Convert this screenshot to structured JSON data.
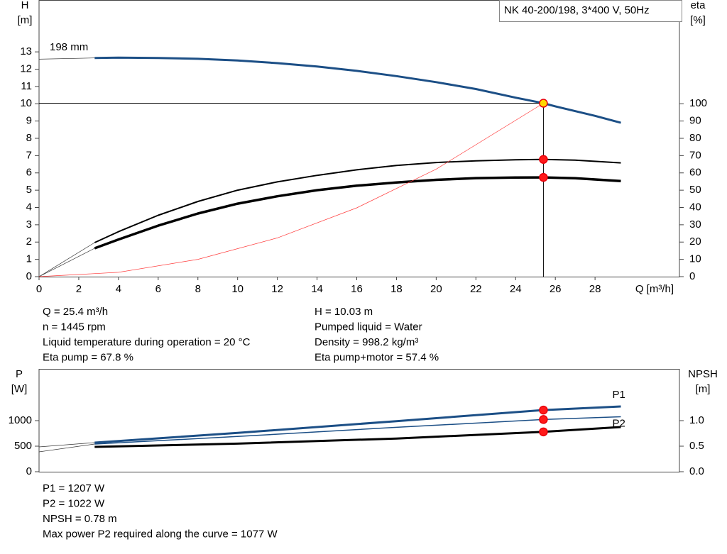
{
  "chart_data": [
    {
      "type": "line",
      "title": "NK 40-200/198, 3*400 V, 50Hz",
      "y_label": "H",
      "y_unit": "[m]",
      "y2_label": "eta",
      "y2_unit": "[%]",
      "x_label": "Q [m³/h]",
      "curve_label": "198 mm",
      "xlim": [
        0,
        32.25
      ],
      "xticks": [
        0,
        2,
        4,
        6,
        8,
        10,
        12,
        14,
        16,
        18,
        20,
        22,
        24,
        26,
        28
      ],
      "ylim": [
        0,
        16
      ],
      "yticks": [
        0,
        1,
        2,
        3,
        4,
        5,
        6,
        7,
        8,
        9,
        10,
        11,
        12,
        13
      ],
      "y2lim": [
        0,
        160
      ],
      "y2ticks": [
        0,
        10,
        20,
        30,
        40,
        50,
        60,
        70,
        80,
        90,
        100
      ],
      "series": [
        {
          "color": "#333333",
          "width": 0.7,
          "x": [
            0,
            2.8
          ],
          "values": [
            12.58,
            12.65
          ]
        },
        {
          "color": "#1c4f86",
          "width": 3,
          "x": [
            2.8,
            4,
            6,
            8,
            10,
            12,
            14,
            16,
            18,
            20,
            22,
            24,
            25.4,
            26,
            28,
            29.3
          ],
          "values": [
            12.65,
            12.67,
            12.65,
            12.6,
            12.5,
            12.35,
            12.15,
            11.9,
            11.6,
            11.25,
            10.85,
            10.35,
            10.03,
            9.85,
            9.3,
            8.9
          ]
        },
        {
          "color": "#333333",
          "width": 0.7,
          "axis": "y2",
          "x": [
            0,
            2.8
          ],
          "values": [
            0,
            19.7
          ]
        },
        {
          "color": "#000000",
          "width": 2,
          "axis": "y2",
          "x": [
            2.8,
            4,
            6,
            8,
            10,
            12,
            14,
            16,
            18,
            20,
            22,
            24,
            25.4,
            27,
            29.3
          ],
          "values": [
            19.7,
            26,
            35.5,
            43.5,
            50,
            54.8,
            58.6,
            61.8,
            64.3,
            66,
            67,
            67.6,
            67.8,
            67.4,
            65.8
          ]
        },
        {
          "color": "#333333",
          "width": 0.7,
          "axis": "y2",
          "x": [
            0,
            2.8
          ],
          "values": [
            0,
            16.4
          ]
        },
        {
          "color": "#000000",
          "width": 3.5,
          "axis": "y2",
          "x": [
            2.8,
            4,
            6,
            8,
            10,
            12,
            14,
            16,
            18,
            20,
            22,
            24,
            25.4,
            27,
            29.3
          ],
          "values": [
            16.4,
            21.5,
            29.5,
            36.5,
            42.2,
            46.5,
            50,
            52.6,
            54.5,
            56,
            57,
            57.3,
            57.4,
            56.9,
            55.3
          ]
        },
        {
          "color": "#ff3b3b",
          "width": 0.7,
          "x": [
            0,
            4,
            8,
            12,
            16,
            20,
            25.4
          ],
          "values": [
            0,
            0.25,
            1,
            2.24,
            3.98,
            6.22,
            10.03
          ]
        },
        {
          "color": "#e8000b",
          "marker": "#ffd700",
          "operating": true,
          "x": [
            25.4
          ],
          "values": [
            10.03
          ]
        },
        {
          "color": "#e8000b",
          "marker": "#ff1a1a",
          "axis": "y2",
          "x": [
            25.4,
            25.4
          ],
          "values": [
            67.8,
            57.4
          ]
        }
      ],
      "info_left": [
        "Q = 25.4 m³/h",
        "n = 1445 rpm",
        "Liquid temperature during operation = 20 °C",
        "Eta pump = 67.8 %"
      ],
      "info_right": [
        "H = 10.03 m",
        "Pumped liquid = Water",
        "Density = 998.2 kg/m³",
        "Eta pump+motor = 57.4 %"
      ]
    },
    {
      "type": "line",
      "y_label": "P",
      "y_unit": "[W]",
      "y2_label": "NPSH",
      "y2_unit": "[m]",
      "xlim": [
        0,
        32.25
      ],
      "ylim": [
        0,
        2014
      ],
      "yticks": [
        0,
        500,
        1000
      ],
      "y2lim": [
        0,
        2.014
      ],
      "y2ticks": [
        {
          "value": 0,
          "label": "0.0"
        },
        {
          "value": 0.5,
          "label": "0.5"
        },
        {
          "value": 1,
          "label": "1.0"
        }
      ],
      "series": [
        {
          "color": "#333333",
          "width": 0.7,
          "x": [
            0,
            2.8
          ],
          "values": [
            486,
            569
          ]
        },
        {
          "name": "P1",
          "color": "#1c4f86",
          "width": 3,
          "x": [
            2.8,
            10,
            18,
            25.4,
            29.3
          ],
          "values": [
            569,
            760,
            990,
            1207,
            1278
          ]
        },
        {
          "color": "#333333",
          "width": 0.7,
          "x": [
            0,
            2.8
          ],
          "values": [
            389,
            542
          ]
        },
        {
          "name": "P2",
          "color": "#1c4f86",
          "width": 1.5,
          "x": [
            2.8,
            10,
            18,
            25.4,
            29.3
          ],
          "values": [
            542,
            690,
            870,
            1022,
            1077
          ]
        },
        {
          "color": "#000000",
          "width": 3,
          "axis": "y2",
          "x": [
            2.8,
            10,
            18,
            25.4,
            29.3
          ],
          "values": [
            0.486,
            0.55,
            0.65,
            0.78,
            0.875
          ]
        },
        {
          "color": "#e8000b",
          "marker": "#ff1a1a",
          "x": [
            25.4,
            25.4
          ],
          "values": [
            1207,
            1022
          ]
        },
        {
          "color": "#e8000b",
          "marker": "#ff1a1a",
          "axis": "y2",
          "x": [
            25.4
          ],
          "values": [
            0.78
          ]
        }
      ],
      "info": [
        "P1 = 1207 W",
        "P2 = 1022 W",
        "NPSH = 0.78 m",
        "Max power P2 required along the curve = 1077 W"
      ]
    }
  ]
}
